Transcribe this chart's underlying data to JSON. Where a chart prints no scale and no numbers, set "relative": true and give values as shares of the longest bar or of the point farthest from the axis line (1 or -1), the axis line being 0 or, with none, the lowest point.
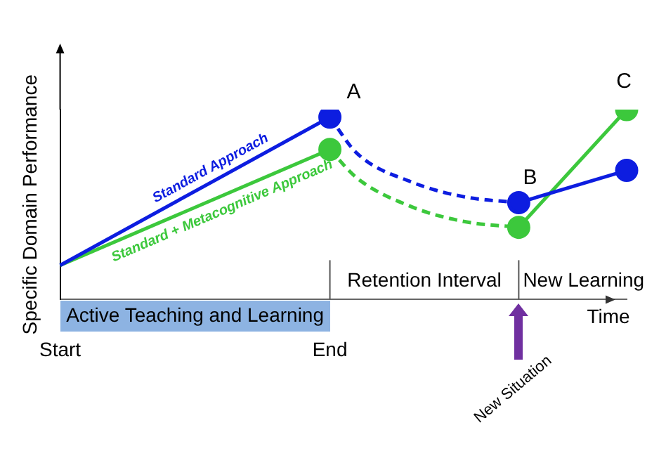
{
  "chart_data": {
    "type": "line",
    "relative": true,
    "ylabel": "Specific Domain Performance",
    "xlabel": "Time",
    "grid": false,
    "legend": false,
    "categories": [
      "Start",
      null,
      null,
      null,
      null,
      null,
      null,
      null,
      null,
      null,
      "End",
      null,
      null,
      null,
      null,
      null,
      null,
      null,
      null,
      null,
      null,
      null
    ],
    "series": [
      {
        "name": "Standard Approach",
        "color": "#0d1de0",
        "values": [
          0.18,
          null,
          null,
          null,
          null,
          null,
          null,
          null,
          null,
          null,
          0.96,
          null,
          null,
          null,
          null,
          null,
          null,
          null,
          null,
          null,
          null,
          null
        ],
        "line_style": "solid",
        "marker": "none"
      },
      {
        "name": "Standard + Metacognitive Approach",
        "color": "#3cc83c",
        "values": [
          0.18,
          null,
          null,
          null,
          null,
          null,
          null,
          null,
          null,
          null,
          0.79,
          null,
          null,
          null,
          null,
          null,
          null,
          null,
          null,
          null,
          null,
          null
        ],
        "line_style": "solid",
        "marker": "none"
      },
      {
        "color": "#0d1de0",
        "values": [
          null,
          null,
          null,
          null,
          null,
          null,
          null,
          null,
          null,
          null,
          0.96,
          0.77,
          null,
          0.62,
          null,
          0.54,
          null,
          0.51,
          null,
          null,
          null,
          null
        ],
        "line_style": "dashed",
        "marker": "none"
      },
      {
        "color": "#3cc83c",
        "values": [
          null,
          null,
          null,
          null,
          null,
          null,
          null,
          null,
          null,
          null,
          0.79,
          0.64,
          null,
          0.49,
          null,
          0.41,
          null,
          0.38,
          null,
          null,
          null,
          null
        ],
        "line_style": "dashed",
        "marker": "none"
      },
      {
        "color": "#0d1de0",
        "values": [
          null,
          null,
          null,
          null,
          null,
          null,
          null,
          null,
          null,
          null,
          null,
          null,
          null,
          null,
          null,
          null,
          null,
          0.51,
          null,
          null,
          null,
          0.68
        ],
        "line_style": "solid",
        "marker": "none"
      },
      {
        "color": "#3cc83c",
        "values": [
          null,
          null,
          null,
          null,
          null,
          null,
          null,
          null,
          null,
          null,
          null,
          null,
          null,
          null,
          null,
          null,
          null,
          0.38,
          null,
          null,
          null,
          1
        ],
        "line_style": "solid",
        "marker": "none"
      },
      {
        "type": "scatter",
        "color": "#0d1de0",
        "values": [
          null,
          null,
          null,
          null,
          null,
          null,
          null,
          null,
          null,
          null,
          0.96,
          null,
          null,
          null,
          null,
          null,
          null,
          0.51,
          null,
          null,
          null,
          0.68
        ],
        "marker": "circle"
      },
      {
        "type": "scatter",
        "color": "#3cc83c",
        "values": [
          null,
          null,
          null,
          null,
          null,
          null,
          null,
          null,
          null,
          null,
          0.79,
          null,
          null,
          null,
          null,
          null,
          null,
          0.38,
          null,
          null,
          null,
          1
        ],
        "marker": "circle"
      }
    ],
    "annotations": [
      "A",
      "B",
      "C",
      "Active Teaching and Learning",
      "Retention Interval",
      "New Learning",
      "New Situation"
    ]
  }
}
